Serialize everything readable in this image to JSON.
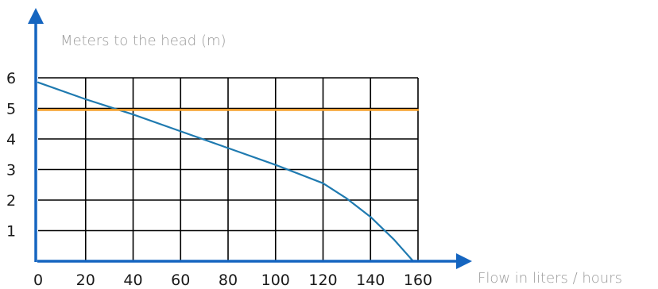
{
  "chart_data": {
    "type": "line",
    "title": "",
    "xlabel": "Flow in liters / hours",
    "ylabel": "Meters to the head (m)",
    "xlim": [
      0,
      160
    ],
    "ylim": [
      0,
      6
    ],
    "x_ticks": [
      0,
      20,
      40,
      60,
      80,
      100,
      120,
      140,
      160
    ],
    "y_ticks": [
      1,
      2,
      3,
      4,
      5,
      6
    ],
    "grid": true,
    "legend": "none",
    "series": [
      {
        "color": "#1f7ab0",
        "x": [
          0,
          20,
          40,
          60,
          80,
          100,
          120,
          130,
          140,
          150,
          158
        ],
        "y": [
          5.85,
          5.3,
          4.8,
          4.25,
          3.7,
          3.15,
          2.55,
          2.05,
          1.45,
          0.7,
          0.0
        ]
      },
      {
        "color": "#f5a12c",
        "x": [
          0,
          160
        ],
        "y": [
          4.95,
          4.95
        ]
      }
    ],
    "colors": {
      "axis": "#1565c0",
      "grid": "#000000"
    }
  }
}
